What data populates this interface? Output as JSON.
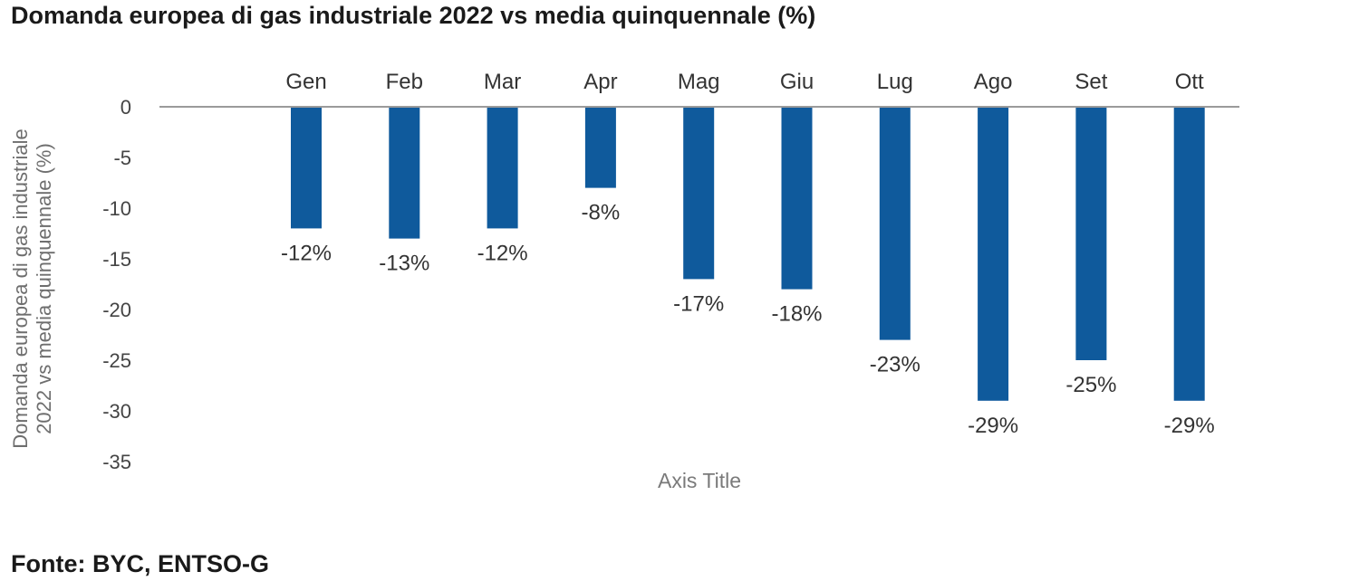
{
  "chart_data": {
    "type": "bar",
    "title": "Domanda europea di gas industriale 2022 vs media quinquennale (%)",
    "categories": [
      "Gen",
      "Feb",
      "Mar",
      "Apr",
      "Mag",
      "Giu",
      "Lug",
      "Ago",
      "Set",
      "Ott"
    ],
    "values": [
      -12,
      -13,
      -12,
      -8,
      -17,
      -18,
      -23,
      -29,
      -25,
      -29
    ],
    "data_labels": [
      "-12%",
      "-13%",
      "-12%",
      "-8%",
      "-17%",
      "-18%",
      "-23%",
      "-29%",
      "-25%",
      "-29%"
    ],
    "xlabel": "Axis Title",
    "ylabel_lines": [
      "Domanda europea di gas industriale",
      "2022 vs media quinquennale (%)"
    ],
    "ylim": [
      -35,
      0
    ],
    "yticks": [
      0,
      -5,
      -10,
      -15,
      -20,
      -25,
      -30,
      -35
    ],
    "bar_color": "#0f5a9c",
    "grid": false
  },
  "source": "Fonte: BYC, ENTSO-G"
}
